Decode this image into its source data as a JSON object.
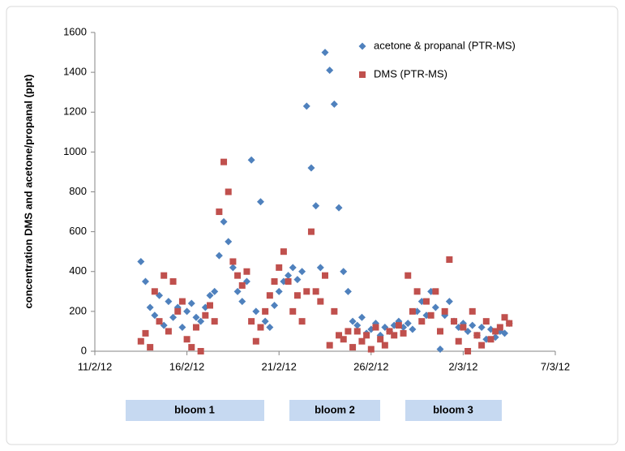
{
  "chart_data": {
    "type": "scatter",
    "ylabel": "concentration DMS and acetone/propanal (ppt)",
    "xlim": [
      "2012-02-11T00:00",
      "2012-03-07T00:00"
    ],
    "xticks": [
      {
        "value": "2012-02-11T00:00",
        "label": "11/2/12"
      },
      {
        "value": "2012-02-16T00:00",
        "label": "16/2/12"
      },
      {
        "value": "2012-02-21T00:00",
        "label": "21/2/12"
      },
      {
        "value": "2012-02-26T00:00",
        "label": "26/2/12"
      },
      {
        "value": "2012-03-02T00:00",
        "label": "2/3/12"
      },
      {
        "value": "2012-03-07T00:00",
        "label": "7/3/12"
      }
    ],
    "ylim": [
      0,
      1600
    ],
    "yticks": [
      0,
      200,
      400,
      600,
      800,
      1000,
      1200,
      1400,
      1600
    ],
    "grid": false,
    "legend": "top-right",
    "annotations": [
      "bloom 1",
      "bloom 2",
      "bloom 3"
    ],
    "series": [
      {
        "name": "acetone & propanal (PTR-MS)",
        "color": "#4f81bd",
        "marker": "diamond",
        "x": [
          "2012-02-13T12:00",
          "2012-02-13T18:00",
          "2012-02-14T00:00",
          "2012-02-14T06:00",
          "2012-02-14T12:00",
          "2012-02-14T18:00",
          "2012-02-15T00:00",
          "2012-02-15T06:00",
          "2012-02-15T12:00",
          "2012-02-15T18:00",
          "2012-02-16T00:00",
          "2012-02-16T06:00",
          "2012-02-16T12:00",
          "2012-02-16T18:00",
          "2012-02-17T00:00",
          "2012-02-17T06:00",
          "2012-02-17T12:00",
          "2012-02-17T18:00",
          "2012-02-18T00:00",
          "2012-02-18T06:00",
          "2012-02-18T12:00",
          "2012-02-18T18:00",
          "2012-02-19T00:00",
          "2012-02-19T06:00",
          "2012-02-19T12:00",
          "2012-02-19T18:00",
          "2012-02-20T00:00",
          "2012-02-20T06:00",
          "2012-02-20T12:00",
          "2012-02-20T18:00",
          "2012-02-21T00:00",
          "2012-02-21T06:00",
          "2012-02-21T12:00",
          "2012-02-21T18:00",
          "2012-02-22T00:00",
          "2012-02-22T06:00",
          "2012-02-22T12:00",
          "2012-02-22T18:00",
          "2012-02-23T00:00",
          "2012-02-23T06:00",
          "2012-02-23T12:00",
          "2012-02-23T18:00",
          "2012-02-24T00:00",
          "2012-02-24T06:00",
          "2012-02-24T12:00",
          "2012-02-24T18:00",
          "2012-02-25T00:00",
          "2012-02-25T06:00",
          "2012-02-25T12:00",
          "2012-02-25T18:00",
          "2012-02-26T00:00",
          "2012-02-26T06:00",
          "2012-02-26T12:00",
          "2012-02-26T18:00",
          "2012-02-27T00:00",
          "2012-02-27T06:00",
          "2012-02-27T12:00",
          "2012-02-27T18:00",
          "2012-02-28T00:00",
          "2012-02-28T06:00",
          "2012-02-28T12:00",
          "2012-02-28T18:00",
          "2012-02-29T00:00",
          "2012-02-29T06:00",
          "2012-02-29T12:00",
          "2012-02-29T18:00",
          "2012-03-01T00:00",
          "2012-03-01T06:00",
          "2012-03-01T12:00",
          "2012-03-01T18:00",
          "2012-03-02T00:00",
          "2012-03-02T06:00",
          "2012-03-02T12:00",
          "2012-03-02T18:00",
          "2012-03-03T00:00",
          "2012-03-03T06:00",
          "2012-03-03T12:00",
          "2012-03-03T18:00",
          "2012-03-04T00:00",
          "2012-03-04T06:00",
          "2012-03-04T12:00"
        ],
        "values": [
          450,
          350,
          220,
          180,
          280,
          130,
          250,
          170,
          220,
          120,
          200,
          240,
          170,
          150,
          220,
          280,
          300,
          480,
          650,
          550,
          420,
          300,
          250,
          350,
          960,
          200,
          750,
          150,
          120,
          230,
          300,
          350,
          380,
          420,
          360,
          400,
          1230,
          920,
          730,
          420,
          1500,
          1410,
          1240,
          720,
          400,
          300,
          150,
          130,
          170,
          90,
          110,
          140,
          80,
          120,
          100,
          130,
          150,
          120,
          140,
          110,
          200,
          250,
          180,
          300,
          220,
          10,
          180,
          250,
          150,
          120,
          140,
          100,
          130,
          80,
          120,
          60,
          110,
          70,
          100,
          90,
          140
        ]
      },
      {
        "name": "DMS (PTR-MS)",
        "color": "#c0504d",
        "marker": "square",
        "x": [
          "2012-02-13T12:00",
          "2012-02-13T18:00",
          "2012-02-14T00:00",
          "2012-02-14T06:00",
          "2012-02-14T12:00",
          "2012-02-14T18:00",
          "2012-02-15T00:00",
          "2012-02-15T06:00",
          "2012-02-15T12:00",
          "2012-02-15T18:00",
          "2012-02-16T00:00",
          "2012-02-16T06:00",
          "2012-02-16T12:00",
          "2012-02-16T18:00",
          "2012-02-17T00:00",
          "2012-02-17T06:00",
          "2012-02-17T12:00",
          "2012-02-17T18:00",
          "2012-02-18T00:00",
          "2012-02-18T06:00",
          "2012-02-18T12:00",
          "2012-02-18T18:00",
          "2012-02-19T00:00",
          "2012-02-19T06:00",
          "2012-02-19T12:00",
          "2012-02-19T18:00",
          "2012-02-20T00:00",
          "2012-02-20T06:00",
          "2012-02-20T12:00",
          "2012-02-20T18:00",
          "2012-02-21T00:00",
          "2012-02-21T06:00",
          "2012-02-21T12:00",
          "2012-02-21T18:00",
          "2012-02-22T00:00",
          "2012-02-22T06:00",
          "2012-02-22T12:00",
          "2012-02-22T18:00",
          "2012-02-23T00:00",
          "2012-02-23T06:00",
          "2012-02-23T12:00",
          "2012-02-23T18:00",
          "2012-02-24T00:00",
          "2012-02-24T06:00",
          "2012-02-24T12:00",
          "2012-02-24T18:00",
          "2012-02-25T00:00",
          "2012-02-25T06:00",
          "2012-02-25T12:00",
          "2012-02-25T18:00",
          "2012-02-26T00:00",
          "2012-02-26T06:00",
          "2012-02-26T12:00",
          "2012-02-26T18:00",
          "2012-02-27T00:00",
          "2012-02-27T06:00",
          "2012-02-27T12:00",
          "2012-02-27T18:00",
          "2012-02-28T00:00",
          "2012-02-28T06:00",
          "2012-02-28T12:00",
          "2012-02-28T18:00",
          "2012-02-29T00:00",
          "2012-02-29T06:00",
          "2012-02-29T12:00",
          "2012-02-29T18:00",
          "2012-03-01T00:00",
          "2012-03-01T06:00",
          "2012-03-01T12:00",
          "2012-03-01T18:00",
          "2012-03-02T00:00",
          "2012-03-02T06:00",
          "2012-03-02T12:00",
          "2012-03-02T18:00",
          "2012-03-03T00:00",
          "2012-03-03T06:00",
          "2012-03-03T12:00",
          "2012-03-03T18:00",
          "2012-03-04T00:00",
          "2012-03-04T06:00",
          "2012-03-04T12:00"
        ],
        "values": [
          50,
          90,
          20,
          300,
          150,
          380,
          100,
          350,
          200,
          250,
          60,
          20,
          120,
          0,
          180,
          230,
          150,
          700,
          950,
          800,
          450,
          380,
          330,
          400,
          150,
          50,
          120,
          200,
          280,
          350,
          420,
          500,
          350,
          200,
          280,
          150,
          300,
          600,
          300,
          250,
          380,
          30,
          200,
          80,
          60,
          100,
          20,
          100,
          50,
          80,
          10,
          120,
          60,
          30,
          100,
          80,
          130,
          90,
          380,
          200,
          300,
          150,
          250,
          180,
          300,
          100,
          200,
          460,
          150,
          50,
          120,
          0,
          200,
          80,
          30,
          150,
          60,
          100,
          120,
          170,
          140
        ]
      }
    ]
  }
}
